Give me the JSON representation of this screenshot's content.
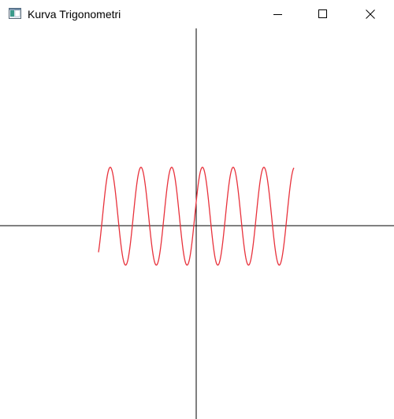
{
  "window": {
    "title": "Kurva Trigonometri",
    "icon": "app-window-icon",
    "controls": [
      "minimize-icon",
      "maximize-icon",
      "close-icon"
    ]
  },
  "plot": {
    "axis_color": "#000000",
    "curve_color": "#e8323c"
  },
  "chart_data": {
    "type": "line",
    "title": "",
    "xlabel": "",
    "ylabel": "",
    "x_range": [
      -124,
      124
    ],
    "y_range": [
      -250,
      250
    ],
    "series": [
      {
        "function": "sine",
        "amplitude": 62,
        "period_x_units": 39,
        "offset_y": 12,
        "x_start": -124,
        "x_end": 124,
        "color": "#e8323c"
      }
    ],
    "grid": false,
    "legend": "none"
  }
}
